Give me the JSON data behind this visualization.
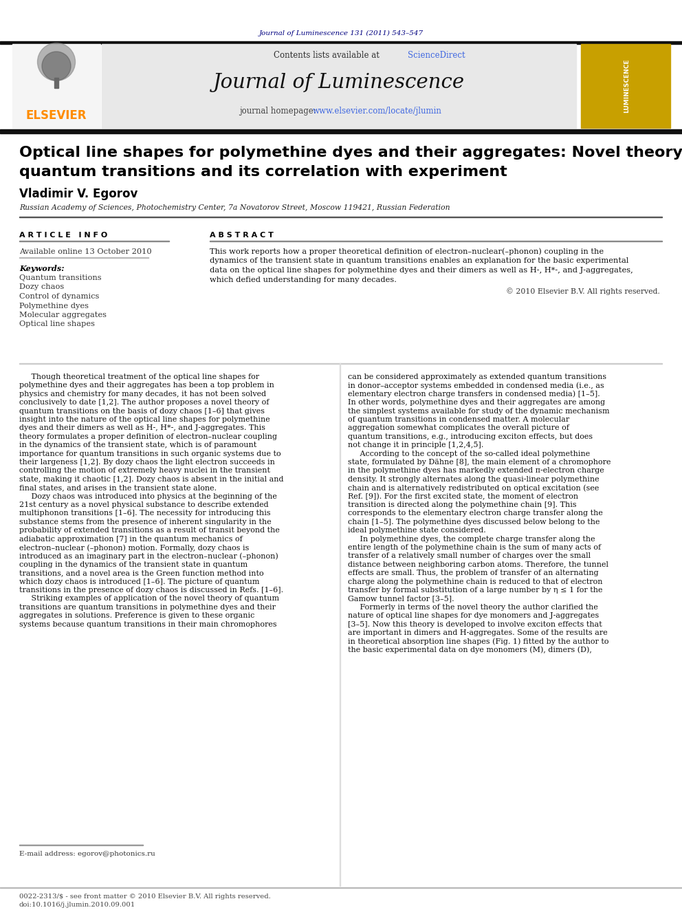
{
  "fig_width": 9.92,
  "fig_height": 13.23,
  "bg_color": "#ffffff",
  "header_journal_text": "Journal of Luminescence 131 (2011) 543–547",
  "header_journal_color": "#000080",
  "header_bg_color": "#e8e8e8",
  "elsevier_color": "#FF8C00",
  "journal_title": "Journal of Luminescence",
  "contents_text": "Contents lists available at ",
  "sciencedirect_text": "ScienceDirect",
  "sciencedirect_color": "#4169E1",
  "homepage_label": "journal homepage: ",
  "homepage_url": "www.elsevier.com/locate/jlumin",
  "homepage_url_color": "#4169E1",
  "paper_title_line1": "Optical line shapes for polymethine dyes and their aggregates: Novel theory of",
  "paper_title_line2": "quantum transitions and its correlation with experiment",
  "author_name": "Vladimir V. Egorov",
  "affiliation": "Russian Academy of Sciences, Photochemistry Center, 7a Novatorov Street, Moscow 119421, Russian Federation",
  "article_info_header": "A R T I C L E   I N F O",
  "abstract_header": "A B S T R A C T",
  "available_online": "Available online 13 October 2010",
  "keywords_label": "Keywords:",
  "keywords": [
    "Quantum transitions",
    "Dozy chaos",
    "Control of dynamics",
    "Polymethine dyes",
    "Molecular aggregates",
    "Optical line shapes"
  ],
  "abstract_lines": [
    "This work reports how a proper theoretical definition of electron–nuclear(–phonon) coupling in the",
    "dynamics of the transient state in quantum transitions enables an explanation for the basic experimental",
    "data on the optical line shapes for polymethine dyes and their dimers as well as H-, H*-, and J-aggregates,",
    "which defied understanding for many decades."
  ],
  "copyright_text": "© 2010 Elsevier B.V. All rights reserved.",
  "col1_lines": [
    "     Though theoretical treatment of the optical line shapes for",
    "polymethine dyes and their aggregates has been a top problem in",
    "physics and chemistry for many decades, it has not been solved",
    "conclusively to date [1,2]. The author proposes a novel theory of",
    "quantum transitions on the basis of dozy chaos [1–6] that gives",
    "insight into the nature of the optical line shapes for polymethine",
    "dyes and their dimers as well as H-, H*-, and J-aggregates. This",
    "theory formulates a proper definition of electron–nuclear coupling",
    "in the dynamics of the transient state, which is of paramount",
    "importance for quantum transitions in such organic systems due to",
    "their largeness [1,2]. By dozy chaos the light electron succeeds in",
    "controlling the motion of extremely heavy nuclei in the transient",
    "state, making it chaotic [1,2]. Dozy chaos is absent in the initial and",
    "final states, and arises in the transient state alone.",
    "     Dozy chaos was introduced into physics at the beginning of the",
    "21st century as a novel physical substance to describe extended",
    "multiphonon transitions [1–6]. The necessity for introducing this",
    "substance stems from the presence of inherent singularity in the",
    "probability of extended transitions as a result of transit beyond the",
    "adiabatic approximation [7] in the quantum mechanics of",
    "electron–nuclear (–phonon) motion. Formally, dozy chaos is",
    "introduced as an imaginary part in the electron–nuclear (–phonon)",
    "coupling in the dynamics of the transient state in quantum",
    "transitions, and a novel area is the Green function method into",
    "which dozy chaos is introduced [1–6]. The picture of quantum",
    "transitions in the presence of dozy chaos is discussed in Refs. [1–6].",
    "     Striking examples of application of the novel theory of quantum",
    "transitions are quantum transitions in polymethine dyes and their",
    "aggregates in solutions. Preference is given to these organic",
    "systems because quantum transitions in their main chromophores"
  ],
  "col2_lines": [
    "can be considered approximately as extended quantum transitions",
    "in donor–acceptor systems embedded in condensed media (i.e., as",
    "elementary electron charge transfers in condensed media) [1–5].",
    "In other words, polymethine dyes and their aggregates are among",
    "the simplest systems available for study of the dynamic mechanism",
    "of quantum transitions in condensed matter. A molecular",
    "aggregation somewhat complicates the overall picture of",
    "quantum transitions, e.g., introducing exciton effects, but does",
    "not change it in principle [1,2,4,5].",
    "     According to the concept of the so-called ideal polymethine",
    "state, formulated by Dähne [8], the main element of a chromophore",
    "in the polymethine dyes has markedly extended π-electron charge",
    "density. It strongly alternates along the quasi-linear polymethine",
    "chain and is alternatively redistributed on optical excitation (see",
    "Ref. [9]). For the first excited state, the moment of electron",
    "transition is directed along the polymethine chain [9]. This",
    "corresponds to the elementary electron charge transfer along the",
    "chain [1–5]. The polymethine dyes discussed below belong to the",
    "ideal polymethine state considered.",
    "     In polymethine dyes, the complete charge transfer along the",
    "entire length of the polymethine chain is the sum of many acts of",
    "transfer of a relatively small number of charges over the small",
    "distance between neighboring carbon atoms. Therefore, the tunnel",
    "effects are small. Thus, the problem of transfer of an alternating",
    "charge along the polymethine chain is reduced to that of electron",
    "transfer by formal substitution of a large number by η ≤ 1 for the",
    "Gamow tunnel factor [3–5].",
    "     Formerly in terms of the novel theory the author clarified the",
    "nature of optical line shapes for dye monomers and J-aggregates",
    "[3–5]. Now this theory is developed to involve exciton effects that",
    "are important in dimers and H-aggregates. Some of the results are",
    "in theoretical absorption line shapes (Fig. 1) fitted by the author to",
    "the basic experimental data on dye monomers (M), dimers (D),"
  ],
  "footnote_email": "E-mail address: egorov@photonics.ru",
  "footer_issn": "0022-2313/$ - see front matter © 2010 Elsevier B.V. All rights reserved.",
  "footer_doi": "doi:10.1016/j.jlumin.2010.09.001",
  "luminescence_cover_color": "#C8A000",
  "luminescence_cover_text_color": "#ffffff"
}
